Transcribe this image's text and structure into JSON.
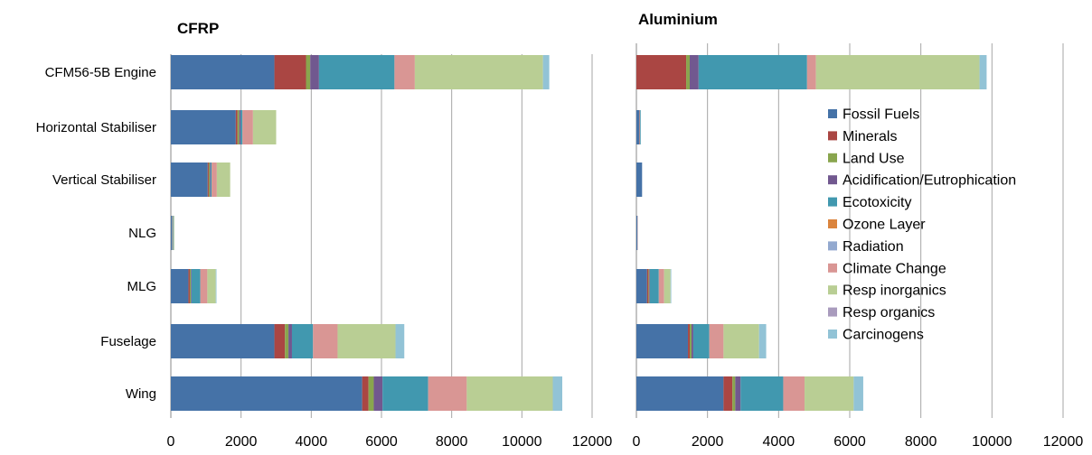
{
  "chart_data": [
    {
      "type": "bar",
      "orientation": "horizontal",
      "stacked": true,
      "title": "CFRP",
      "categories": [
        "CFM56-5B Engine",
        "Horizontal Stabiliser",
        "Vertical Stabiliser",
        "NLG",
        "MLG",
        "Fuselage",
        "Wing"
      ],
      "xlim": [
        0,
        12000
      ],
      "xticks": [
        "0",
        "2000",
        "4000",
        "6000",
        "8000",
        "10000",
        "12000"
      ],
      "grid": "vertical",
      "series": [
        {
          "name": "Fossil Fuels",
          "values": [
            2950,
            1850,
            1050,
            30,
            500,
            2950,
            5450
          ]
        },
        {
          "name": "Minerals",
          "values": [
            900,
            50,
            30,
            5,
            40,
            300,
            180
          ]
        },
        {
          "name": "Land Use",
          "values": [
            120,
            50,
            30,
            5,
            30,
            100,
            150
          ]
        },
        {
          "name": "Acidification/Eutrophication",
          "values": [
            250,
            40,
            20,
            5,
            20,
            100,
            250
          ]
        },
        {
          "name": "Ecotoxicity",
          "values": [
            2150,
            50,
            30,
            20,
            250,
            600,
            1300
          ]
        },
        {
          "name": "Ozone Layer",
          "values": [
            0,
            0,
            0,
            0,
            0,
            0,
            0
          ]
        },
        {
          "name": "Radiation",
          "values": [
            0,
            0,
            0,
            0,
            0,
            0,
            0
          ]
        },
        {
          "name": "Climate Change",
          "values": [
            580,
            300,
            150,
            10,
            200,
            700,
            1100
          ]
        },
        {
          "name": "Resp inorganics",
          "values": [
            3650,
            660,
            380,
            20,
            240,
            1650,
            2450
          ]
        },
        {
          "name": "Resp organics",
          "values": [
            0,
            0,
            0,
            0,
            0,
            0,
            0
          ]
        },
        {
          "name": "Carcinogens",
          "values": [
            180,
            0,
            0,
            5,
            20,
            250,
            270
          ]
        }
      ]
    },
    {
      "type": "bar",
      "orientation": "horizontal",
      "stacked": true,
      "title": "Aluminium",
      "categories": [
        "CFM56-5B Engine",
        "Horizontal Stabiliser",
        "Vertical Stabiliser",
        "NLG",
        "MLG",
        "Fuselage",
        "Wing"
      ],
      "xlim": [
        0,
        12000
      ],
      "xticks": [
        "0",
        "2000",
        "4000",
        "6000",
        "8000",
        "10000",
        "12000"
      ],
      "grid": "vertical",
      "series": [
        {
          "name": "Fossil Fuels",
          "values": [
            0,
            80,
            160,
            30,
            300,
            1450,
            2450
          ]
        },
        {
          "name": "Minerals",
          "values": [
            1400,
            10,
            0,
            5,
            40,
            50,
            250
          ]
        },
        {
          "name": "Land Use",
          "values": [
            100,
            5,
            0,
            0,
            20,
            50,
            80
          ]
        },
        {
          "name": "Acidification/Eutrophication",
          "values": [
            250,
            5,
            0,
            0,
            20,
            50,
            150
          ]
        },
        {
          "name": "Ecotoxicity",
          "values": [
            3050,
            20,
            0,
            0,
            250,
            450,
            1200
          ]
        },
        {
          "name": "Ozone Layer",
          "values": [
            0,
            0,
            0,
            0,
            0,
            0,
            0
          ]
        },
        {
          "name": "Radiation",
          "values": [
            0,
            0,
            0,
            0,
            0,
            0,
            0
          ]
        },
        {
          "name": "Climate Change",
          "values": [
            250,
            0,
            0,
            0,
            150,
            400,
            600
          ]
        },
        {
          "name": "Resp inorganics",
          "values": [
            4600,
            0,
            0,
            0,
            180,
            1000,
            1380
          ]
        },
        {
          "name": "Resp organics",
          "values": [
            0,
            0,
            0,
            0,
            0,
            0,
            0
          ]
        },
        {
          "name": "Carcinogens",
          "values": [
            200,
            0,
            0,
            0,
            20,
            200,
            270
          ]
        }
      ],
      "legend": "right"
    }
  ],
  "legend": {
    "placement": "right",
    "items": [
      {
        "label": "Fossil Fuels",
        "color": "#4572A7"
      },
      {
        "label": "Minerals",
        "color": "#AA4643"
      },
      {
        "label": "Land Use",
        "color": "#89A54E"
      },
      {
        "label": "Acidification/Eutrophication",
        "color": "#71588F"
      },
      {
        "label": "Ecotoxicity",
        "color": "#4198AF"
      },
      {
        "label": "Ozone Layer",
        "color": "#DB843D"
      },
      {
        "label": "Radiation",
        "color": "#93A9CF"
      },
      {
        "label": "Climate Change",
        "color": "#D99694"
      },
      {
        "label": "Resp inorganics",
        "color": "#B9CE94"
      },
      {
        "label": "Resp organics",
        "color": "#A99BBD"
      },
      {
        "label": "Carcinogens",
        "color": "#92C3D6"
      }
    ]
  }
}
